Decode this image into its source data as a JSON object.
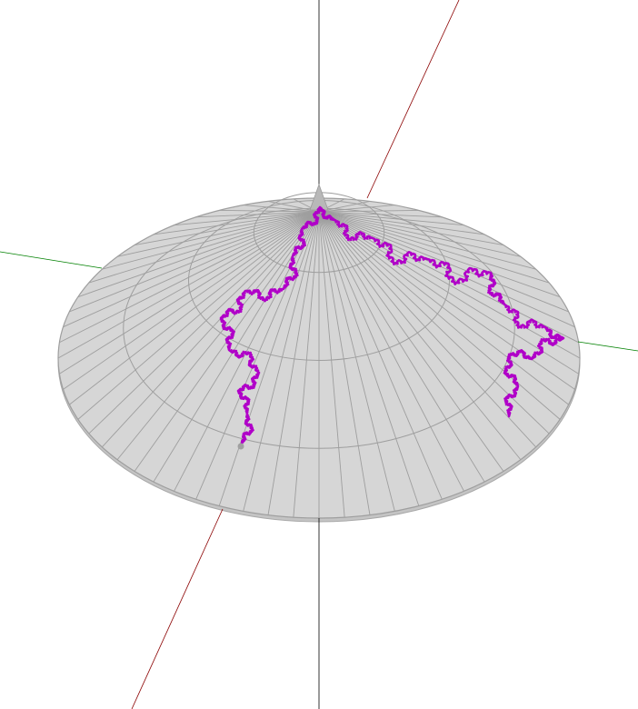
{
  "scene": {
    "background": "#ffffff",
    "axes": {
      "x_color": "#8b0000",
      "y_color": "#008000",
      "z_color": "#000000"
    },
    "surface": {
      "type": "cone",
      "fill_color": "#d6d6d6",
      "edge_color": "#9e9e9e",
      "radial_segments": 64,
      "rings": 4
    },
    "curve": {
      "type": "koch-snowflake-projection",
      "color": "#b000c8",
      "endpoint_color": "#a0a0a0"
    }
  }
}
